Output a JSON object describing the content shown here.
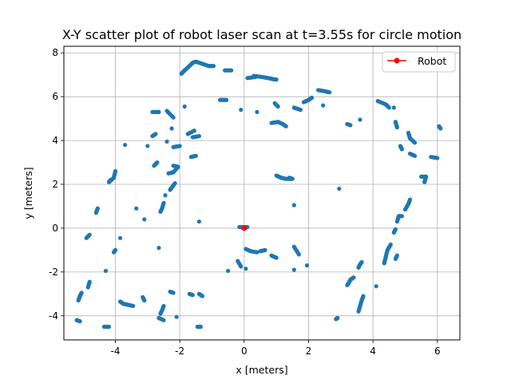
{
  "chart_data": {
    "type": "scatter",
    "title": "X-Y scatter plot of robot laser scan at t=3.55s for circle motion",
    "xlabel": "x [meters]",
    "ylabel": "y [meters]",
    "xlim": [
      -5.6,
      6.7
    ],
    "ylim": [
      -5.1,
      8.3
    ],
    "xticks": [
      -4,
      -2,
      0,
      2,
      4,
      6
    ],
    "yticks": [
      -4,
      -2,
      0,
      2,
      4,
      6,
      8
    ],
    "grid": true,
    "legend": {
      "position": "top-right",
      "entries": [
        {
          "label": "Robot",
          "color": "#ff0000",
          "marker": "line-circle"
        }
      ]
    },
    "colors": {
      "scan": "#1f77b4",
      "robot": "#ff0000"
    },
    "series": [
      {
        "color": "#1f77b4",
        "marker": "dot",
        "segments": [
          [
            [
              -1.95,
              7.05
            ],
            [
              -1.85,
              7.2
            ],
            [
              -1.7,
              7.4
            ],
            [
              -1.6,
              7.55
            ],
            [
              -1.5,
              7.6
            ],
            [
              -1.3,
              7.5
            ],
            [
              -1.1,
              7.4
            ],
            [
              -0.95,
              7.4
            ]
          ],
          [
            [
              -0.6,
              7.2
            ],
            [
              -0.4,
              7.2
            ]
          ],
          [
            [
              0.1,
              6.85
            ],
            [
              0.35,
              6.9
            ]
          ],
          [
            [
              0.3,
              6.95
            ],
            [
              0.55,
              6.9
            ],
            [
              0.75,
              6.85
            ],
            [
              0.9,
              6.8
            ],
            [
              1.0,
              6.78
            ]
          ],
          [
            [
              2.3,
              6.3
            ],
            [
              2.5,
              6.25
            ],
            [
              2.65,
              6.2
            ]
          ],
          [
            [
              1.85,
              5.75
            ],
            [
              2.0,
              5.85
            ],
            [
              2.1,
              5.95
            ]
          ],
          [
            [
              1.55,
              5.5
            ],
            [
              1.75,
              5.4
            ]
          ],
          [
            [
              2.45,
              5.6
            ]
          ],
          [
            [
              0.95,
              5.7
            ],
            [
              1.05,
              5.55
            ]
          ],
          [
            [
              0.4,
              5.3
            ]
          ],
          [
            [
              -0.1,
              5.4
            ]
          ],
          [
            [
              -0.75,
              5.85
            ],
            [
              -0.55,
              5.85
            ]
          ],
          [
            [
              -1.85,
              5.55
            ]
          ],
          [
            [
              -2.85,
              5.3
            ],
            [
              -2.65,
              5.3
            ]
          ],
          [
            [
              -2.4,
              5.35
            ],
            [
              -2.2,
              5.05
            ]
          ],
          [
            [
              -2.25,
              4.55
            ]
          ],
          [
            [
              -1.75,
              4.3
            ],
            [
              -1.55,
              4.45
            ]
          ],
          [
            [
              -2.85,
              4.2
            ],
            [
              -2.75,
              4.3
            ]
          ],
          [
            [
              -2.0,
              3.75
            ],
            [
              -2.2,
              3.7
            ]
          ],
          [
            [
              -3.0,
              3.75
            ]
          ],
          [
            [
              -1.6,
              4.15
            ],
            [
              -1.4,
              4.2
            ]
          ],
          [
            [
              -2.4,
              3.95
            ]
          ],
          [
            [
              -3.7,
              3.8
            ]
          ],
          [
            [
              -1.65,
              3.25
            ],
            [
              -1.5,
              3.3
            ]
          ],
          [
            [
              -2.8,
              2.85
            ],
            [
              -2.7,
              3.0
            ]
          ],
          [
            [
              -2.2,
              2.85
            ],
            [
              -2.05,
              2.8
            ],
            [
              -2.2,
              2.55
            ],
            [
              -2.35,
              2.5
            ]
          ],
          [
            [
              -2.15,
              2.05
            ],
            [
              -2.25,
              1.85
            ],
            [
              -2.3,
              1.75
            ]
          ],
          [
            [
              -4.0,
              2.6
            ],
            [
              -4.05,
              2.3
            ],
            [
              -4.2,
              2.1
            ],
            [
              -4.15,
              2.2
            ]
          ],
          [
            [
              -4.55,
              0.9
            ],
            [
              -4.6,
              0.7
            ]
          ],
          [
            [
              -2.45,
              1.5
            ]
          ],
          [
            [
              -2.5,
              1.15
            ],
            [
              -2.55,
              0.9
            ],
            [
              -2.6,
              0.75
            ]
          ],
          [
            [
              -3.35,
              0.9
            ]
          ],
          [
            [
              -3.1,
              0.4
            ]
          ],
          [
            [
              -1.4,
              0.3
            ]
          ],
          [
            [
              -4.8,
              -0.3
            ],
            [
              -4.9,
              -0.45
            ]
          ],
          [
            [
              -3.85,
              -0.45
            ]
          ],
          [
            [
              -4.0,
              -1.0
            ],
            [
              -4.05,
              -1.1
            ]
          ],
          [
            [
              -2.65,
              -0.9
            ]
          ],
          [
            [
              -4.3,
              -1.95
            ]
          ],
          [
            [
              -4.8,
              -2.45
            ],
            [
              -4.85,
              -2.7
            ]
          ],
          [
            [
              -5.05,
              -2.95
            ],
            [
              -5.1,
              -3.1
            ],
            [
              -5.15,
              -3.3
            ]
          ],
          [
            [
              -3.85,
              -3.35
            ],
            [
              -3.75,
              -3.45
            ],
            [
              -3.6,
              -3.5
            ],
            [
              -3.45,
              -3.55
            ]
          ],
          [
            [
              -3.15,
              -3.15
            ],
            [
              -3.1,
              -3.3
            ]
          ],
          [
            [
              -2.3,
              -2.9
            ],
            [
              -2.2,
              -2.95
            ]
          ],
          [
            [
              -1.7,
              -3.0
            ],
            [
              -1.6,
              -3.05
            ]
          ],
          [
            [
              -1.4,
              -3.0
            ],
            [
              -1.3,
              -3.1
            ]
          ],
          [
            [
              -2.5,
              -3.55
            ],
            [
              -2.55,
              -3.75
            ],
            [
              -2.6,
              -3.9
            ]
          ],
          [
            [
              -2.65,
              -4.1
            ],
            [
              -2.5,
              -4.2
            ]
          ],
          [
            [
              -2.1,
              -4.05
            ]
          ],
          [
            [
              -5.2,
              -4.2
            ],
            [
              -5.1,
              -4.25
            ]
          ],
          [
            [
              -4.35,
              -4.5
            ],
            [
              -4.2,
              -4.5
            ]
          ],
          [
            [
              -1.45,
              -4.5
            ],
            [
              -1.35,
              -4.5
            ]
          ],
          [
            [
              -0.15,
              0.05
            ],
            [
              0.1,
              0.05
            ]
          ],
          [
            [
              -0.2,
              -1.5
            ],
            [
              -0.1,
              -1.75
            ]
          ],
          [
            [
              -0.5,
              -1.95
            ]
          ],
          [
            [
              0.05,
              -1.85
            ]
          ],
          [
            [
              0.05,
              -0.95
            ],
            [
              0.2,
              -1.05
            ],
            [
              0.4,
              -1.1
            ]
          ],
          [
            [
              0.5,
              -1.05
            ],
            [
              0.65,
              -1.0
            ]
          ],
          [
            [
              0.85,
              -1.25
            ],
            [
              1.0,
              -1.35
            ]
          ],
          [
            [
              1.55,
              -0.85
            ],
            [
              1.7,
              -1.2
            ]
          ],
          [
            [
              1.55,
              -1.9
            ]
          ],
          [
            [
              1.95,
              -1.7
            ]
          ],
          [
            [
              1.0,
              2.4
            ],
            [
              1.15,
              2.3
            ],
            [
              1.3,
              2.25
            ],
            [
              1.5,
              2.25
            ],
            [
              1.4,
              2.3
            ]
          ],
          [
            [
              1.55,
              1.05
            ]
          ],
          [
            [
              0.85,
              4.8
            ],
            [
              1.05,
              4.85
            ],
            [
              1.2,
              4.75
            ],
            [
              1.3,
              4.65
            ]
          ],
          [
            [
              2.95,
              1.8
            ]
          ],
          [
            [
              3.2,
              4.75
            ],
            [
              3.3,
              4.7
            ]
          ],
          [
            [
              3.6,
              4.95
            ]
          ],
          [
            [
              3.65,
              -1.55
            ],
            [
              3.6,
              -1.65
            ],
            [
              3.55,
              -1.8
            ]
          ],
          [
            [
              3.4,
              -2.25
            ],
            [
              3.3,
              -2.35
            ],
            [
              3.25,
              -2.5
            ],
            [
              3.2,
              -2.6
            ]
          ],
          [
            [
              3.55,
              -3.8
            ],
            [
              3.6,
              -3.55
            ],
            [
              3.65,
              -3.3
            ],
            [
              3.7,
              -3.1
            ]
          ],
          [
            [
              2.9,
              -4.1
            ],
            [
              2.85,
              -4.15
            ]
          ],
          [
            [
              4.1,
              -2.65
            ]
          ],
          [
            [
              4.55,
              -0.75
            ],
            [
              4.45,
              -1.0
            ],
            [
              4.4,
              -1.3
            ],
            [
              4.35,
              -1.6
            ]
          ],
          [
            [
              4.75,
              -1.25
            ],
            [
              4.7,
              -1.4
            ]
          ],
          [
            [
              4.65,
              -0.2
            ],
            [
              4.7,
              -0.05
            ]
          ],
          [
            [
              4.75,
              0.3
            ],
            [
              4.8,
              0.55
            ],
            [
              4.9,
              0.55
            ]
          ],
          [
            [
              5.0,
              0.85
            ],
            [
              5.1,
              1.1
            ],
            [
              5.15,
              1.3
            ]
          ],
          [
            [
              4.15,
              5.8
            ],
            [
              4.4,
              5.65
            ],
            [
              4.5,
              5.5
            ]
          ],
          [
            [
              4.65,
              5.5
            ]
          ],
          [
            [
              4.7,
              4.85
            ],
            [
              4.75,
              4.6
            ]
          ],
          [
            [
              5.1,
              4.35
            ],
            [
              5.15,
              4.1
            ],
            [
              5.3,
              3.9
            ]
          ],
          [
            [
              4.85,
              3.75
            ],
            [
              4.9,
              3.6
            ]
          ],
          [
            [
              5.15,
              3.4
            ],
            [
              5.3,
              3.3
            ]
          ],
          [
            [
              5.5,
              2.35
            ],
            [
              5.65,
              2.35
            ],
            [
              5.6,
              2.1
            ]
          ],
          [
            [
              5.8,
              3.25
            ],
            [
              6.0,
              3.2
            ]
          ],
          [
            [
              6.05,
              4.65
            ],
            [
              6.1,
              4.55
            ]
          ]
        ]
      },
      {
        "name": "Robot",
        "color": "#ff0000",
        "marker": "circle",
        "points": [
          [
            0.0,
            0.0
          ]
        ]
      }
    ]
  }
}
